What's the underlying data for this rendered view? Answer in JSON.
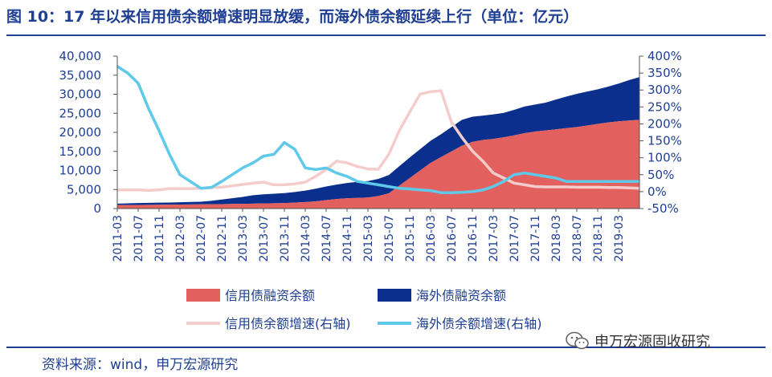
{
  "header": {
    "title": "图 10：17 年以来信用债余额增速明显放缓，而海外债余额延续上行（单位：亿元）"
  },
  "footer": {
    "source": "资料来源：wind，申万宏源研究",
    "watermark": "申万宏源固收研究"
  },
  "colors": {
    "brand": "#1f3f93",
    "credit_balance": "#e2605e",
    "overseas_balance": "#0a2f8c",
    "credit_growth": "#f4cccc",
    "overseas_growth": "#5fc9ea"
  },
  "chart_data": {
    "type": "area",
    "title": "",
    "xlabel": "",
    "ylabel": "",
    "x": [
      "2011-03",
      "2011-05",
      "2011-07",
      "2011-09",
      "2011-11",
      "2012-01",
      "2012-03",
      "2012-05",
      "2012-07",
      "2012-09",
      "2012-11",
      "2013-01",
      "2013-03",
      "2013-05",
      "2013-07",
      "2013-09",
      "2013-11",
      "2014-01",
      "2014-03",
      "2014-05",
      "2014-07",
      "2014-09",
      "2014-11",
      "2015-01",
      "2015-03",
      "2015-05",
      "2015-07",
      "2015-09",
      "2015-11",
      "2016-01",
      "2016-03",
      "2016-05",
      "2016-07",
      "2016-09",
      "2016-11",
      "2017-01",
      "2017-03",
      "2017-05",
      "2017-07",
      "2017-09",
      "2017-11",
      "2018-01",
      "2018-03",
      "2018-05",
      "2018-07",
      "2018-09",
      "2018-11",
      "2019-01",
      "2019-03",
      "2019-05",
      "2019-07"
    ],
    "x_tick_labels": [
      "2011-03",
      "2011-07",
      "2011-11",
      "2012-03",
      "2012-07",
      "2012-11",
      "2013-03",
      "2013-07",
      "2013-11",
      "2014-03",
      "2014-07",
      "2014-11",
      "2015-03",
      "2015-07",
      "2015-11",
      "2016-03",
      "2016-07",
      "2016-11",
      "2017-03",
      "2017-07",
      "2017-11",
      "2018-03",
      "2018-07",
      "2018-11",
      "2019-03"
    ],
    "y_left": {
      "ylim": [
        0,
        40000
      ],
      "ticks": [
        "0",
        "5,000",
        "10,000",
        "15,000",
        "20,000",
        "25,000",
        "30,000",
        "35,000",
        "40,000"
      ]
    },
    "y_right": {
      "ylim": [
        -50,
        400
      ],
      "ticks": [
        "-50%",
        "0%",
        "50%",
        "100%",
        "150%",
        "200%",
        "250%",
        "300%",
        "350%",
        "400%"
      ]
    },
    "grid": false,
    "legend_position": "bottom",
    "series": [
      {
        "name": "信用债融资余额",
        "type": "area",
        "axis": "left",
        "values": [
          900,
          920,
          950,
          980,
          1000,
          1020,
          1050,
          1080,
          1100,
          1130,
          1160,
          1200,
          1250,
          1300,
          1350,
          1400,
          1450,
          1550,
          1700,
          1900,
          2200,
          2500,
          2700,
          2800,
          2900,
          3300,
          4000,
          6000,
          8000,
          10000,
          12000,
          13500,
          15000,
          16500,
          17500,
          18000,
          18300,
          18700,
          19200,
          19800,
          20200,
          20500,
          20800,
          21100,
          21400,
          21800,
          22200,
          22600,
          22900,
          23100,
          23300
        ],
        "color": "#e2605e"
      },
      {
        "name": "海外债融资余额",
        "type": "area_stacked",
        "axis": "left",
        "values": [
          400,
          450,
          500,
          520,
          540,
          560,
          600,
          650,
          700,
          900,
          1200,
          1500,
          1800,
          2200,
          2400,
          2500,
          2600,
          2800,
          3000,
          3300,
          3600,
          3800,
          4000,
          4200,
          4300,
          4500,
          4800,
          5100,
          5400,
          5600,
          5800,
          6000,
          6400,
          6800,
          6600,
          6400,
          6400,
          6400,
          6700,
          7000,
          7100,
          7300,
          7800,
          8300,
          8700,
          8900,
          9100,
          9400,
          9900,
          10600,
          11200
        ],
        "color": "#0a2f8c"
      },
      {
        "name": "信用债余额增速(右轴)",
        "type": "line",
        "axis": "right",
        "values": [
          5,
          5,
          5,
          4,
          5,
          9,
          9,
          9,
          10,
          12,
          13,
          17,
          21,
          25,
          28,
          20,
          20,
          23,
          28,
          45,
          65,
          90,
          85,
          74,
          67,
          66,
          110,
          180,
          235,
          288,
          295,
          298,
          205,
          160,
          120,
          90,
          55,
          40,
          25,
          20,
          15,
          14,
          14,
          14,
          13,
          13,
          13,
          12,
          12,
          11,
          10
        ],
        "color": "#f4cccc"
      },
      {
        "name": "海外债余额增速(右轴)",
        "type": "line",
        "axis": "right",
        "values": [
          370,
          350,
          320,
          245,
          180,
          110,
          50,
          30,
          10,
          12,
          30,
          50,
          70,
          85,
          105,
          110,
          145,
          125,
          70,
          65,
          70,
          55,
          45,
          30,
          25,
          20,
          15,
          10,
          8,
          5,
          3,
          -3,
          -3,
          -2,
          0,
          5,
          15,
          30,
          50,
          55,
          50,
          45,
          40,
          30,
          30,
          30,
          30,
          30,
          30,
          30,
          30
        ],
        "color": "#5fc9ea"
      }
    ]
  }
}
